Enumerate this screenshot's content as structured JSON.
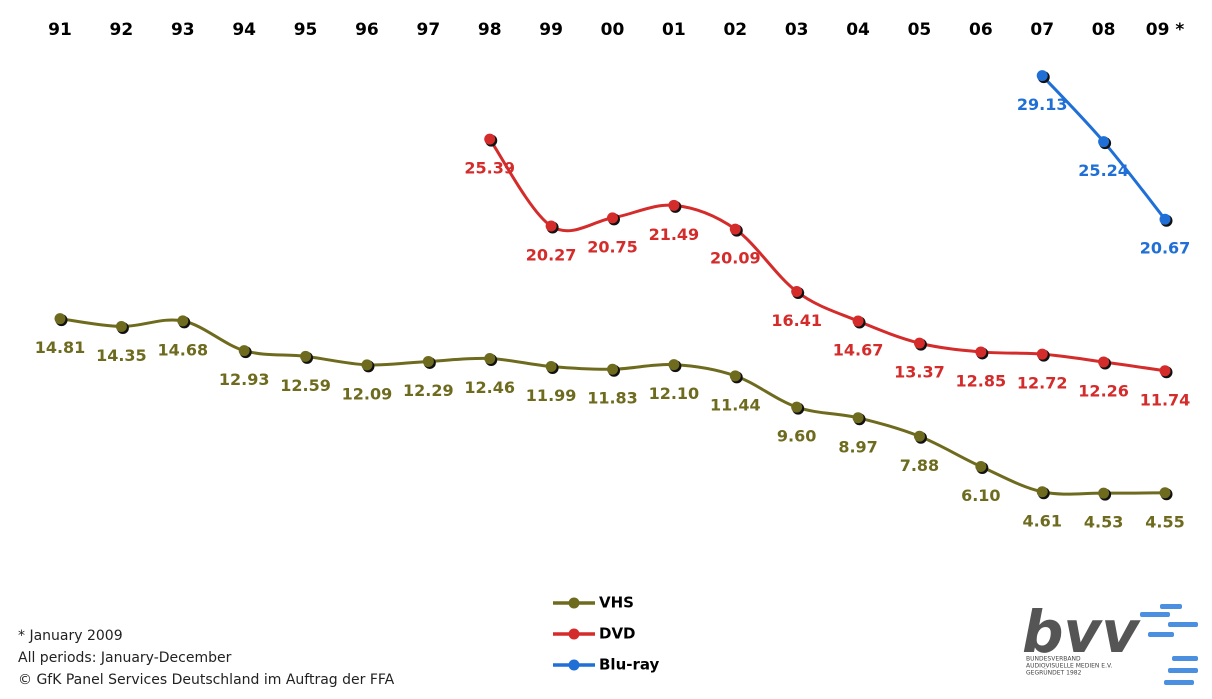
{
  "chart_data": {
    "type": "line",
    "categories": [
      "91",
      "92",
      "93",
      "94",
      "95",
      "96",
      "97",
      "98",
      "99",
      "00",
      "01",
      "02",
      "03",
      "04",
      "05",
      "06",
      "07",
      "08",
      "09 *"
    ],
    "ylim": [
      0,
      33
    ],
    "series": [
      {
        "name": "VHS",
        "color": "#6e6b1f",
        "values": [
          14.81,
          14.35,
          14.68,
          12.93,
          12.59,
          12.09,
          12.29,
          12.46,
          11.99,
          11.83,
          12.1,
          11.44,
          9.6,
          8.97,
          7.88,
          6.1,
          4.61,
          4.53,
          4.55
        ],
        "value_labels": [
          "14.81",
          "14.35",
          "14.68",
          "12.93",
          "12.59",
          "12.09",
          "12.29",
          "12.46",
          "11.99",
          "11.83",
          "12.10",
          "11.44",
          "9.60",
          "8.97",
          "7.88",
          "6.10",
          "4.61",
          "4.53",
          "4.55"
        ]
      },
      {
        "name": "DVD",
        "color": "#d42b2b",
        "values": [
          null,
          null,
          null,
          null,
          null,
          null,
          null,
          25.39,
          20.27,
          20.75,
          21.49,
          20.09,
          16.41,
          14.67,
          13.37,
          12.85,
          12.72,
          12.26,
          11.74
        ],
        "value_labels": [
          null,
          null,
          null,
          null,
          null,
          null,
          null,
          "25.39",
          "20.27",
          "20.75",
          "21.49",
          "20.09",
          "16.41",
          "14.67",
          "13.37",
          "12.85",
          "12.72",
          "12.26",
          "11.74"
        ]
      },
      {
        "name": "Blu-ray",
        "color": "#1f6fd6",
        "values": [
          null,
          null,
          null,
          null,
          null,
          null,
          null,
          null,
          null,
          null,
          null,
          null,
          null,
          null,
          null,
          null,
          29.13,
          25.24,
          20.67
        ],
        "value_labels": [
          null,
          null,
          null,
          null,
          null,
          null,
          null,
          null,
          null,
          null,
          null,
          null,
          null,
          null,
          null,
          null,
          "29.13",
          "25.24",
          "20.67"
        ]
      }
    ],
    "footnotes": [
      "* January 2009",
      "All periods: January-December",
      "© GfK Panel Services Deutschland im Auftrag der FFA"
    ],
    "logo": {
      "text": "bvv",
      "subtext": [
        "BUNDESVERBAND",
        "AUDIOVISUELLE MEDIEN E.V.",
        "GEGRÜNDET 1982"
      ]
    }
  }
}
